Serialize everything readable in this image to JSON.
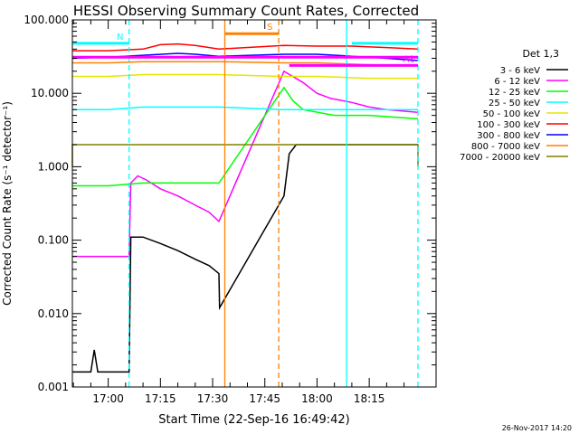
{
  "chart_data": {
    "type": "line",
    "title": "HESSI Observing Summary Count Rates, Corrected",
    "xlabel": "Start Time (22-Sep-16 16:49:42)",
    "ylabel": "Corrected Count Rate (s⁻¹ detector⁻¹)",
    "y_scale": "log",
    "ylim": [
      0.001,
      100.0
    ],
    "xlim_minutes_of_day": [
      1009.7,
      1114.2
    ],
    "y_ticks": [
      {
        "value": 100.0,
        "label": "100.000"
      },
      {
        "value": 10.0,
        "label": "10.000"
      },
      {
        "value": 1.0,
        "label": "1.000"
      },
      {
        "value": 0.1,
        "label": "0.100"
      },
      {
        "value": 0.01,
        "label": "0.010"
      },
      {
        "value": 0.001,
        "label": "0.001"
      }
    ],
    "x_ticks": [
      {
        "value": 1020,
        "label": "17:00"
      },
      {
        "value": 1035,
        "label": "17:15"
      },
      {
        "value": 1050,
        "label": "17:30"
      },
      {
        "value": 1065,
        "label": "17:45"
      },
      {
        "value": 1080,
        "label": "18:00"
      },
      {
        "value": 1095,
        "label": "18:15"
      }
    ],
    "legend_title": "Det 1,3",
    "legend_position": "right",
    "series": [
      {
        "name": "3 - 6 keV",
        "color": "#000000",
        "points": [
          [
            1009.7,
            0.0016
          ],
          [
            1015,
            0.0016
          ],
          [
            1016,
            0.0032
          ],
          [
            1017,
            0.0016
          ],
          [
            1026,
            0.0016
          ],
          [
            1026.5,
            0.11
          ],
          [
            1030,
            0.11
          ],
          [
            1035,
            0.09
          ],
          [
            1040,
            0.072
          ],
          [
            1045,
            0.055
          ],
          [
            1049,
            0.045
          ],
          [
            1051.8,
            0.035
          ],
          [
            1052,
            0.012
          ],
          [
            1070.5,
            0.4
          ],
          [
            1072,
            1.5
          ],
          [
            1074,
            2.0
          ],
          [
            1085,
            2.0
          ],
          [
            1100,
            2.0
          ],
          [
            1109,
            2.0
          ]
        ]
      },
      {
        "name": "6 - 12 keV",
        "color": "#ff00ff",
        "points": [
          [
            1009.7,
            0.06
          ],
          [
            1026,
            0.06
          ],
          [
            1026.5,
            0.6
          ],
          [
            1028.5,
            0.75
          ],
          [
            1031,
            0.66
          ],
          [
            1035,
            0.5
          ],
          [
            1040,
            0.4
          ],
          [
            1045,
            0.3
          ],
          [
            1049,
            0.24
          ],
          [
            1051.8,
            0.18
          ],
          [
            1070.5,
            20.0
          ],
          [
            1073,
            17.0
          ],
          [
            1076,
            14.0
          ],
          [
            1080,
            10.0
          ],
          [
            1084,
            8.5
          ],
          [
            1090,
            7.5
          ],
          [
            1095,
            6.5
          ],
          [
            1100,
            6.0
          ],
          [
            1109,
            5.5
          ]
        ]
      },
      {
        "name": "12 - 25 keV",
        "color": "#00ff00",
        "points": [
          [
            1009.7,
            0.55
          ],
          [
            1015,
            0.55
          ],
          [
            1020,
            0.55
          ],
          [
            1030,
            0.6
          ],
          [
            1040,
            0.6
          ],
          [
            1051.8,
            0.6
          ],
          [
            1070.5,
            12.0
          ],
          [
            1073,
            8.0
          ],
          [
            1076,
            6.0
          ],
          [
            1085,
            5.0
          ],
          [
            1095,
            5.0
          ],
          [
            1109,
            4.5
          ]
        ]
      },
      {
        "name": "25 - 50 keV",
        "color": "#00ffff",
        "points": [
          [
            1009.7,
            6.0
          ],
          [
            1020,
            6.0
          ],
          [
            1030,
            6.5
          ],
          [
            1040,
            6.5
          ],
          [
            1051.8,
            6.5
          ],
          [
            1070.5,
            6.0
          ],
          [
            1080,
            6.0
          ],
          [
            1095,
            6.0
          ],
          [
            1109,
            6.0
          ]
        ]
      },
      {
        "name": "50 - 100 keV",
        "color": "#e6e600",
        "points": [
          [
            1009.7,
            17.0
          ],
          [
            1020,
            17.0
          ],
          [
            1030,
            18.0
          ],
          [
            1040,
            18.0
          ],
          [
            1051.8,
            18.0
          ],
          [
            1070.5,
            17.0
          ],
          [
            1080,
            17.0
          ],
          [
            1095,
            16.0
          ],
          [
            1109,
            16.0
          ]
        ]
      },
      {
        "name": "100 - 300 keV",
        "color": "#ff0000",
        "points": [
          [
            1009.7,
            38.0
          ],
          [
            1020,
            38.0
          ],
          [
            1030,
            40.0
          ],
          [
            1035,
            46.0
          ],
          [
            1040,
            47.0
          ],
          [
            1045,
            45.0
          ],
          [
            1051.8,
            40.0
          ],
          [
            1070.5,
            45.0
          ],
          [
            1080,
            44.0
          ],
          [
            1090,
            44.0
          ],
          [
            1100,
            42.0
          ],
          [
            1109,
            40.0
          ]
        ]
      },
      {
        "name": "300 - 800 keV",
        "color": "#0000ff",
        "points": [
          [
            1009.7,
            30.0
          ],
          [
            1020,
            31.0
          ],
          [
            1030,
            33.0
          ],
          [
            1040,
            35.0
          ],
          [
            1045,
            34.0
          ],
          [
            1051.8,
            32.0
          ],
          [
            1070.5,
            34.0
          ],
          [
            1080,
            34.0
          ],
          [
            1090,
            32.0
          ],
          [
            1100,
            30.0
          ],
          [
            1109,
            28.0
          ]
        ]
      },
      {
        "name": "800 - 7000 keV",
        "color": "#ff8000",
        "points": [
          [
            1009.7,
            26.0
          ],
          [
            1020,
            26.0
          ],
          [
            1030,
            27.0
          ],
          [
            1040,
            27.0
          ],
          [
            1051.8,
            27.0
          ],
          [
            1070.5,
            26.0
          ],
          [
            1080,
            26.0
          ],
          [
            1090,
            25.0
          ],
          [
            1100,
            24.0
          ],
          [
            1109,
            24.0
          ]
        ]
      },
      {
        "name": "7000 - 20000 keV",
        "color": "#808000",
        "points": [
          [
            1009.7,
            1.0
          ],
          [
            1009.7,
            2.0
          ],
          [
            1020,
            2.0
          ],
          [
            1051.8,
            2.0
          ],
          [
            1070.5,
            2.0
          ],
          [
            1109,
            2.0
          ],
          [
            1109,
            1.0
          ]
        ]
      }
    ],
    "flag_lines": [
      {
        "label": "N",
        "color": "#00ffff",
        "y": 48.0,
        "x": [
          1009.7,
          1026.0
        ]
      },
      {
        "label": "",
        "color": "#00ffff",
        "y": 48.0,
        "x": [
          1090.0,
          1109.0
        ]
      },
      {
        "label": "S",
        "color": "#ff8000",
        "y": 65.0,
        "x": [
          1053.5,
          1069.0
        ]
      },
      {
        "label": "",
        "color": "#ff00ff",
        "y": 31.0,
        "x": [
          1009.7,
          1109.0
        ]
      },
      {
        "label": "A1",
        "color": "#ff00ff",
        "y": 24.0,
        "x": [
          1072.0,
          1109.0
        ]
      }
    ],
    "vertical_markers": [
      {
        "x": 1026.0,
        "color": "#00ffff",
        "style": "dashed"
      },
      {
        "x": 1053.5,
        "color": "#ff8000",
        "style": "solid"
      },
      {
        "x": 1069.0,
        "color": "#ff8000",
        "style": "dashed"
      },
      {
        "x": 1088.5,
        "color": "#00ffff",
        "style": "solid"
      },
      {
        "x": 1109.0,
        "color": "#00ffff",
        "style": "dashed"
      }
    ]
  },
  "footer": {
    "timestamp": "26-Nov-2017 14:20"
  }
}
